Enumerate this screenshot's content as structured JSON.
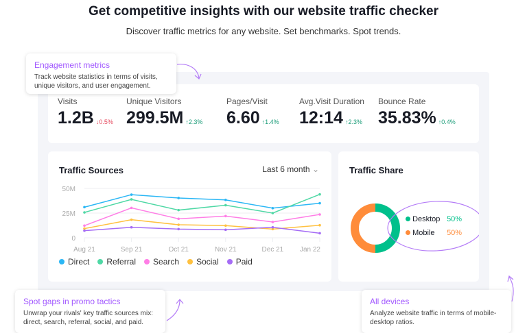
{
  "header": {
    "title": "Get competitive insights with our website traffic checker",
    "subtitle": "Discover traffic metrics for any website. Set benchmarks. Spot trends."
  },
  "metrics": [
    {
      "label": "Visits",
      "value": "1.2B",
      "delta": "↓0.5%",
      "trend": "down"
    },
    {
      "label": "Unique Visitors",
      "value": "299.5M",
      "delta": "↑2.3%",
      "trend": "up"
    },
    {
      "label": "Pages/Visit",
      "value": "6.60",
      "delta": "↑1.4%",
      "trend": "up"
    },
    {
      "label": "Avg.Visit Duration",
      "value": "12:14",
      "delta": "↑2.3%",
      "trend": "up"
    },
    {
      "label": "Bounce Rate",
      "value": "35.83%",
      "delta": "↑0.4%",
      "trend": "up"
    }
  ],
  "traffic_sources": {
    "title": "Traffic Sources",
    "period": "Last 6 month"
  },
  "traffic_share": {
    "title": "Traffic Share",
    "items": [
      {
        "label": "Desktop",
        "value": "50%",
        "color": "#00c08b"
      },
      {
        "label": "Mobile",
        "value": "50%",
        "color": "#ff8c3a"
      }
    ]
  },
  "tips": [
    {
      "title": "Engagement metrics",
      "text": "Track website statistics in terms of visits, unique visitors, and user engagement."
    },
    {
      "title": "Spot gaps in promo tactics",
      "text": "Unwrap your rivals' key traffic sources mix: direct, search, referral, social, and paid."
    },
    {
      "title": "All devices",
      "text": "Analyze website traffic in terms of mobile-desktop ratios."
    }
  ],
  "chart_data": [
    {
      "type": "line",
      "title": "Traffic Sources",
      "categories": [
        "Aug 21",
        "Sep 21",
        "Oct 21",
        "Nov 21",
        "Dec 21",
        "Jan 22"
      ],
      "yticks": [
        "0",
        "25M",
        "50M"
      ],
      "ylim": [
        0,
        50000000
      ],
      "grid": true,
      "legend": "bottom",
      "series": [
        {
          "name": "Direct",
          "color": "#2bb7f5",
          "values": [
            31000000,
            43700000,
            40300000,
            38400000,
            30000000,
            35000000
          ]
        },
        {
          "name": "Referral",
          "color": "#4fd8a5",
          "values": [
            25700000,
            38900000,
            28000000,
            33000000,
            25000000,
            44000000
          ]
        },
        {
          "name": "Search",
          "color": "#ff7ee6",
          "values": [
            12300000,
            30300000,
            19200000,
            22000000,
            16000000,
            23600000
          ]
        },
        {
          "name": "Social",
          "color": "#ffc140",
          "values": [
            9300000,
            18300000,
            13200000,
            12300000,
            8800000,
            12700000
          ]
        },
        {
          "name": "Paid",
          "color": "#a56cf5",
          "values": [
            7200000,
            10600000,
            8800000,
            8100000,
            10600000,
            4600000
          ]
        }
      ]
    },
    {
      "type": "pie",
      "title": "Traffic Share",
      "categories": [
        "Desktop",
        "Mobile"
      ],
      "values": [
        50,
        50
      ],
      "colors": [
        "#00c08b",
        "#ff8c3a"
      ]
    }
  ]
}
